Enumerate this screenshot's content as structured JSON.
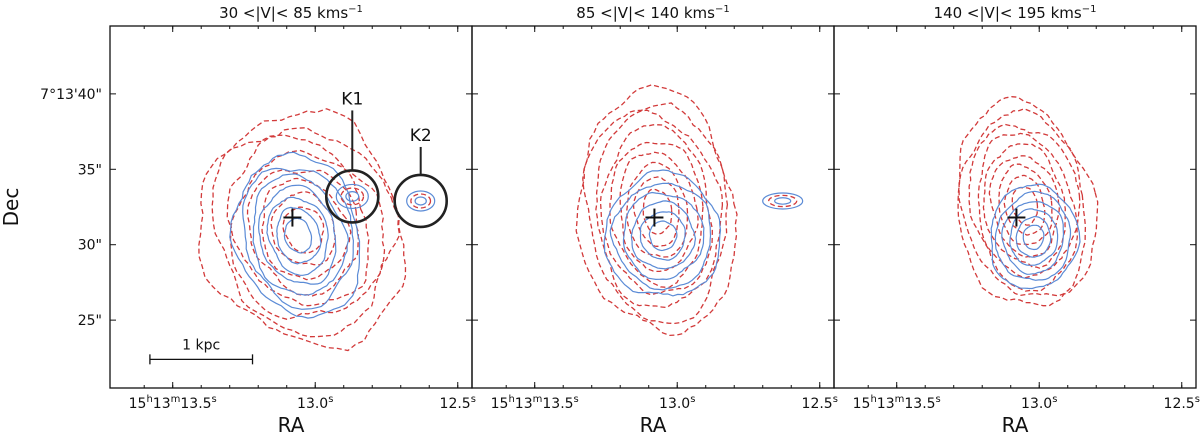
{
  "chart_data": {
    "type": "contour",
    "ylabel": "Dec",
    "y_ticks": [
      {
        "value": 40,
        "label": "7°13'40\""
      },
      {
        "value": 35,
        "label": "35\""
      },
      {
        "value": 30,
        "label": "30\""
      },
      {
        "value": 25,
        "label": "25\""
      }
    ],
    "ylim": [
      20.5,
      44.5
    ],
    "xlim_sec": [
      13.72,
      12.45
    ],
    "x_ticks": [
      {
        "value": 13.5,
        "label": "15h13m13.5s",
        "parts": [
          "15",
          "h",
          "13",
          "m",
          "13.5",
          "s"
        ]
      },
      {
        "value": 13.0,
        "label": "13.0s",
        "parts": [
          "",
          "",
          "",
          "",
          "13.0",
          "s"
        ]
      },
      {
        "value": 12.5,
        "label": "12.5s",
        "parts": [
          "",
          "",
          "",
          "",
          "12.5",
          "s"
        ]
      }
    ],
    "series_legend": [
      {
        "name": "blue solid contours",
        "color": "#5b8bd6"
      },
      {
        "name": "red dashed contours",
        "color": "#d23a3a"
      }
    ],
    "panels": [
      {
        "title": "30 <|V|< 85 kms",
        "title_sup": "−1",
        "xlabel": "RA",
        "center": {
          "ra_sec": 13.08,
          "dec": 31.8
        },
        "red_center": {
          "ra_sec": 13.04,
          "dec": 31.0
        },
        "blue_center": {
          "ra_sec": 13.06,
          "dec": 30.6
        },
        "knots": [
          {
            "label": "K1",
            "ra_sec": 12.87,
            "dec": 33.2
          },
          {
            "label": "K2",
            "ra_sec": 12.63,
            "dec": 32.9
          }
        ],
        "scalebar": {
          "label": "1 kpc",
          "from_sec": 13.58,
          "to_sec": 13.22,
          "dec": 22.4
        }
      },
      {
        "title": "85 <|V|< 140 kms",
        "title_sup": "−1",
        "xlabel": "RA",
        "center": {
          "ra_sec": 13.08,
          "dec": 31.8
        },
        "red_center": {
          "ra_sec": 13.07,
          "dec": 32.2
        },
        "blue_center": {
          "ra_sec": 13.05,
          "dec": 30.6
        },
        "knots": [],
        "scalebar": null
      },
      {
        "title": "140 <|V|< 195 kms",
        "title_sup": "−1",
        "xlabel": "RA",
        "center": {
          "ra_sec": 13.08,
          "dec": 31.8
        },
        "red_center": {
          "ra_sec": 13.05,
          "dec": 32.6
        },
        "blue_center": {
          "ra_sec": 13.02,
          "dec": 30.5
        },
        "knots": [],
        "scalebar": null
      }
    ]
  }
}
